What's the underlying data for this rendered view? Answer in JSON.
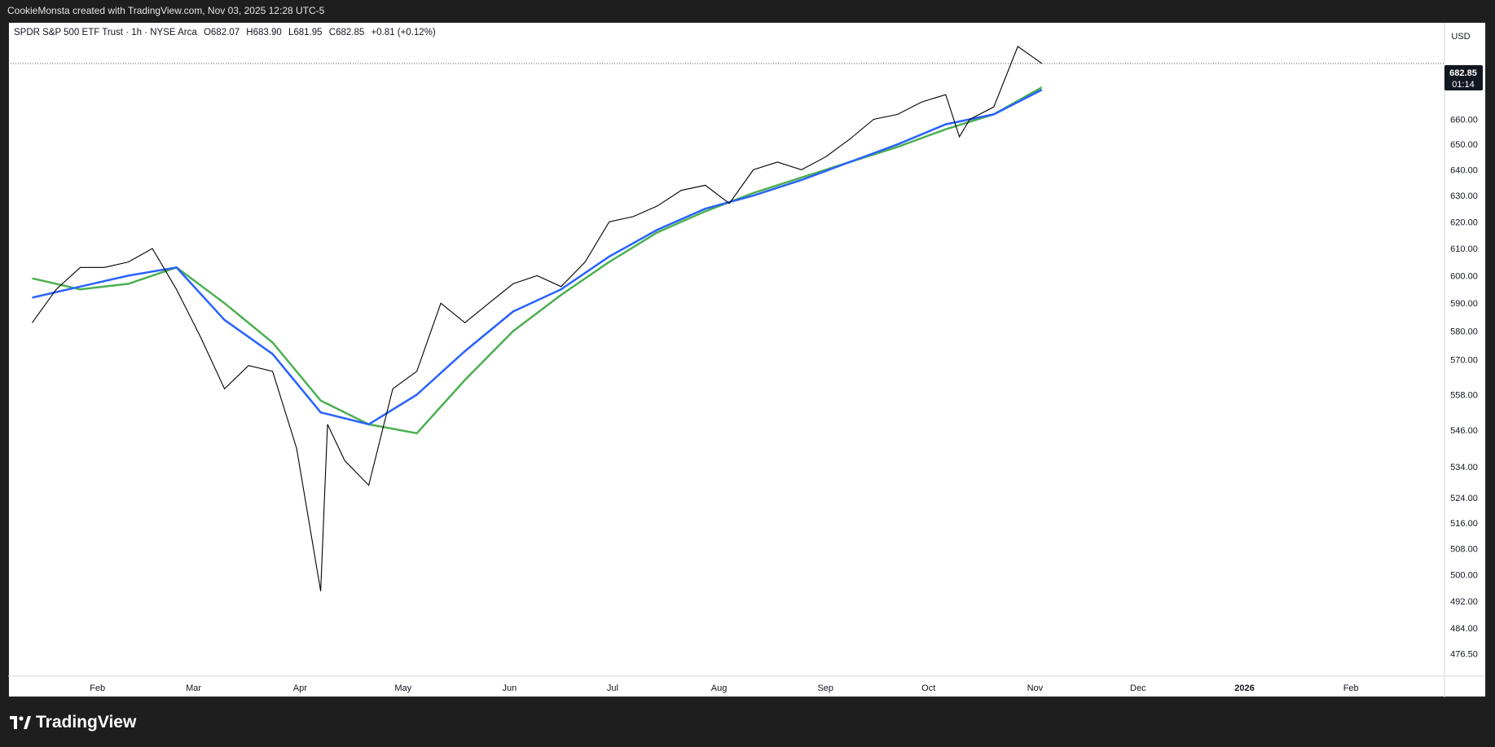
{
  "header": {
    "attribution": "CookieMonsta created with TradingView.com, Nov 03, 2025 12:28 UTC-5"
  },
  "legend": {
    "symbol": "SPDR S&P 500 ETF Trust · 1h · NYSE Arca",
    "open": "O682.07",
    "high": "H683.90",
    "low": "L681.95",
    "close": "C682.85",
    "change": "+0.81 (+0.12%)"
  },
  "currency": "USD",
  "last_price": {
    "value": "682.85",
    "countdown": "01:14"
  },
  "brand": {
    "name": "TradingView"
  },
  "chart_data": {
    "type": "line",
    "scale": "log",
    "grid": false,
    "x_ticks": [
      "Feb",
      "Mar",
      "Apr",
      "May",
      "Jun",
      "Jul",
      "Aug",
      "Sep",
      "Oct",
      "Nov",
      "Dec",
      "2026",
      "Feb"
    ],
    "y_ticks": [
      "476.50",
      "484.00",
      "492.00",
      "500.00",
      "508.00",
      "516.00",
      "524.00",
      "534.00",
      "546.00",
      "558.00",
      "570.00",
      "580.00",
      "590.00",
      "600.00",
      "610.00",
      "620.00",
      "630.00",
      "640.00",
      "650.00",
      "660.00"
    ],
    "y_range": [
      470,
      700
    ],
    "colors": {
      "price": "#000000",
      "ma_fast": "#2962ff",
      "ma_slow": "#4caf50",
      "last_price_line": "#555555"
    },
    "series": [
      {
        "key": "price",
        "x": [
          "2025-01-13",
          "2025-01-20",
          "2025-01-27",
          "2025-02-03",
          "2025-02-10",
          "2025-02-17",
          "2025-02-24",
          "2025-03-03",
          "2025-03-10",
          "2025-03-17",
          "2025-03-24",
          "2025-03-31",
          "2025-04-07",
          "2025-04-09",
          "2025-04-14",
          "2025-04-21",
          "2025-04-28",
          "2025-05-05",
          "2025-05-12",
          "2025-05-19",
          "2025-05-26",
          "2025-06-02",
          "2025-06-09",
          "2025-06-16",
          "2025-06-23",
          "2025-06-30",
          "2025-07-07",
          "2025-07-14",
          "2025-07-21",
          "2025-07-28",
          "2025-08-04",
          "2025-08-11",
          "2025-08-18",
          "2025-08-25",
          "2025-09-01",
          "2025-09-08",
          "2025-09-15",
          "2025-09-22",
          "2025-09-29",
          "2025-10-06",
          "2025-10-10",
          "2025-10-13",
          "2025-10-20",
          "2025-10-27",
          "2025-11-03"
        ],
        "values": [
          583,
          595,
          603,
          603,
          605,
          610,
          595,
          578,
          560,
          568,
          566,
          540,
          495,
          548,
          536,
          528,
          560,
          566,
          590,
          583,
          590,
          597,
          600,
          596,
          605,
          620,
          622,
          626,
          632,
          634,
          627,
          640,
          643,
          640,
          645,
          652,
          660,
          662,
          667,
          670,
          653,
          660,
          665,
          690,
          682.85
        ]
      },
      {
        "key": "ma_fast",
        "x": [
          "2025-01-13",
          "2025-01-27",
          "2025-02-10",
          "2025-02-24",
          "2025-03-10",
          "2025-03-24",
          "2025-04-07",
          "2025-04-21",
          "2025-05-05",
          "2025-05-19",
          "2025-06-02",
          "2025-06-16",
          "2025-06-30",
          "2025-07-14",
          "2025-07-28",
          "2025-08-11",
          "2025-08-25",
          "2025-09-08",
          "2025-09-22",
          "2025-10-06",
          "2025-10-20",
          "2025-11-03"
        ],
        "values": [
          592,
          596,
          600,
          603,
          584,
          572,
          552,
          548,
          558,
          573,
          587,
          595,
          607,
          617,
          625,
          630,
          636,
          643,
          650,
          658,
          662,
          672
        ]
      },
      {
        "key": "ma_slow",
        "x": [
          "2025-01-13",
          "2025-01-27",
          "2025-02-10",
          "2025-02-24",
          "2025-03-10",
          "2025-03-24",
          "2025-04-07",
          "2025-04-21",
          "2025-05-05",
          "2025-05-19",
          "2025-06-02",
          "2025-06-16",
          "2025-06-30",
          "2025-07-14",
          "2025-07-28",
          "2025-08-11",
          "2025-08-25",
          "2025-09-08",
          "2025-09-22",
          "2025-10-06",
          "2025-10-20",
          "2025-11-03"
        ],
        "values": [
          599,
          595,
          597,
          603,
          590,
          576,
          556,
          548,
          545,
          563,
          580,
          593,
          605,
          616,
          624,
          631,
          637,
          643,
          649,
          656,
          662,
          673
        ]
      }
    ]
  }
}
